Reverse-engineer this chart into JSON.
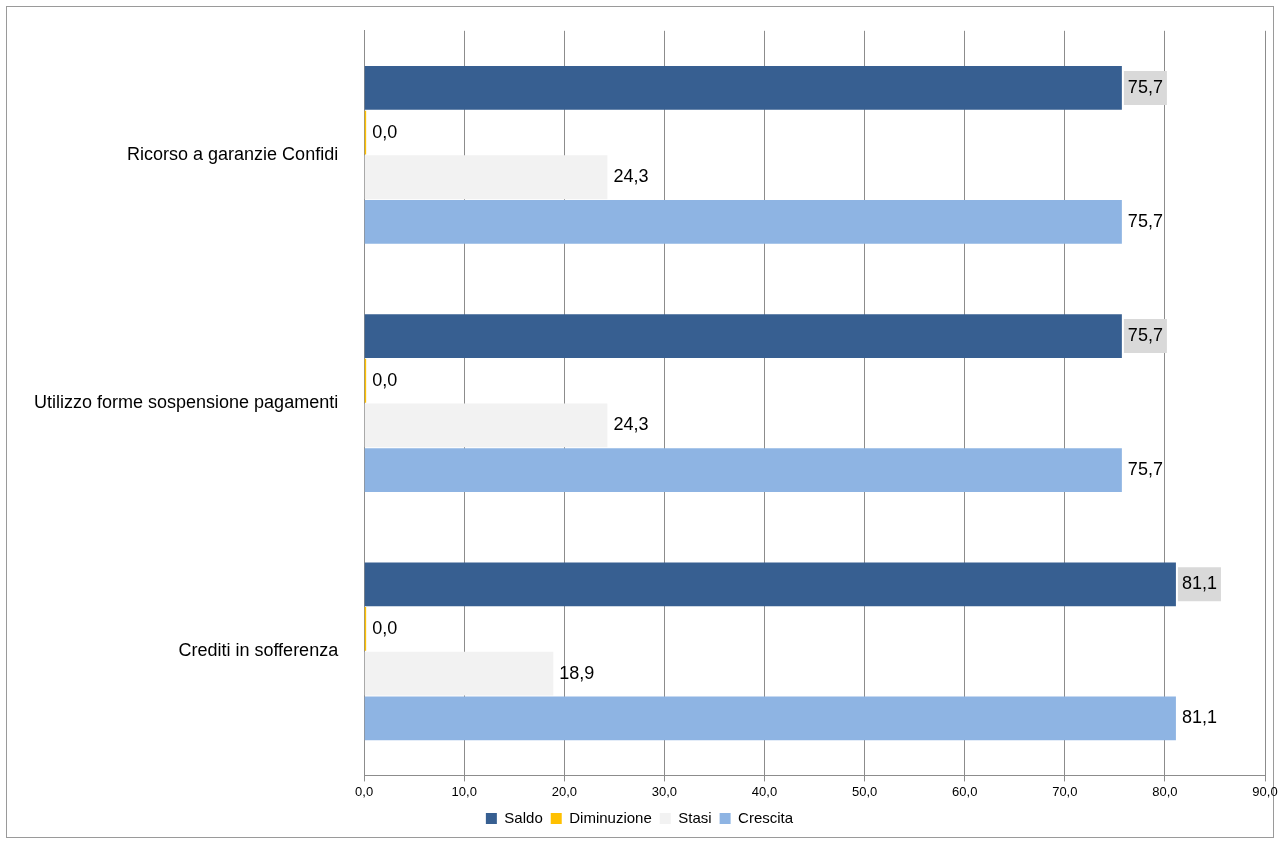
{
  "chart_data": {
    "type": "bar",
    "orientation": "horizontal",
    "categories": [
      "Ricorso a garanzie Confidi",
      "Utilizzo forme sospensione pagamenti",
      "Crediti in sofferenza"
    ],
    "series": [
      {
        "name": "Saldo",
        "color": "#375f91",
        "values": [
          75.7,
          75.7,
          81.1
        ],
        "value_labels": [
          "75,7",
          "75,7",
          "81,1"
        ]
      },
      {
        "name": "Diminuzione",
        "color": "#ffc000",
        "values": [
          0,
          0,
          0
        ],
        "value_labels": [
          "0,0",
          "0,0",
          "0,0"
        ]
      },
      {
        "name": "Stasi",
        "color": "#f2f2f2",
        "values": [
          24.3,
          24.3,
          18.9
        ],
        "value_labels": [
          "24,3",
          "24,3",
          "18,9"
        ]
      },
      {
        "name": "Crescita",
        "color": "#8eb4e3",
        "values": [
          75.7,
          75.7,
          81.1
        ],
        "value_labels": [
          "75,7",
          "75,7",
          "81,1"
        ]
      }
    ],
    "xlim": [
      0,
      90
    ],
    "xticks": [
      {
        "value": 0,
        "label": "0,0"
      },
      {
        "value": 10,
        "label": "10,0"
      },
      {
        "value": 20,
        "label": "20,0"
      },
      {
        "value": 30,
        "label": "30,0"
      },
      {
        "value": 40,
        "label": "40,0"
      },
      {
        "value": 50,
        "label": "50,0"
      },
      {
        "value": 60,
        "label": "60,0"
      },
      {
        "value": 70,
        "label": "70,0"
      },
      {
        "value": 80,
        "label": "80,0"
      },
      {
        "value": 90,
        "label": "90,0"
      }
    ],
    "grid": "x",
    "legend": "bottom"
  }
}
